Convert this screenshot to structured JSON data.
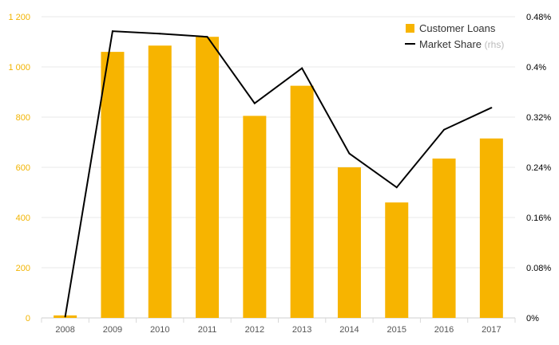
{
  "chart_data": {
    "type": "bar+line",
    "categories": [
      "2008",
      "2009",
      "2010",
      "2011",
      "2012",
      "2013",
      "2014",
      "2015",
      "2016",
      "2017"
    ],
    "series": [
      {
        "name": "Customer Loans",
        "type": "bar",
        "axis": "left",
        "color": "#f7b400",
        "values": [
          10,
          1060,
          1085,
          1120,
          805,
          925,
          600,
          460,
          635,
          715
        ]
      },
      {
        "name": "Market Share",
        "name_note": "(rhs)",
        "type": "line",
        "axis": "right",
        "color": "#000000",
        "values": [
          0.002,
          0.457,
          0.453,
          0.448,
          0.342,
          0.398,
          0.262,
          0.208,
          0.3,
          0.335
        ]
      }
    ],
    "y_left": {
      "ylim": [
        0,
        1200
      ],
      "ticks": [
        0,
        200,
        400,
        600,
        800,
        1000,
        1200
      ],
      "tick_labels": [
        "0",
        "200",
        "400",
        "600",
        "800",
        "1 000",
        "1 200"
      ],
      "label_color": "#f2b400"
    },
    "y_right": {
      "ylim": [
        0,
        0.48
      ],
      "ticks": [
        0,
        0.08,
        0.16,
        0.24,
        0.32,
        0.4,
        0.48
      ],
      "tick_labels": [
        "0%",
        "0.08%",
        "0.16%",
        "0.24%",
        "0.32%",
        "0.4%",
        "0.48%"
      ]
    },
    "grid": true,
    "legend_position": "top-right",
    "title": "",
    "xlabel": "",
    "ylabel": ""
  }
}
